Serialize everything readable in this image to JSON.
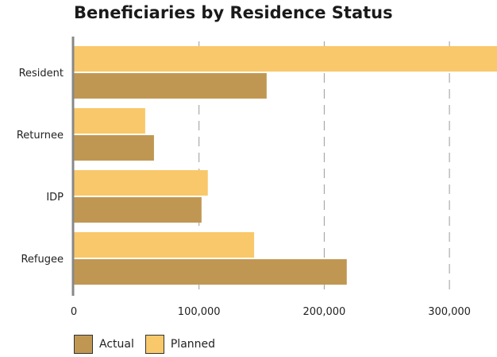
{
  "chart_data": {
    "type": "bar",
    "orientation": "horizontal",
    "title": "Beneficiaries by Residence Status",
    "categories": [
      "Resident",
      "Returnee",
      "IDP",
      "Refugee"
    ],
    "series": [
      {
        "name": "Planned",
        "color": "#f9c86a",
        "values": [
          338000,
          57000,
          107000,
          144000
        ]
      },
      {
        "name": "Actual",
        "color": "#c09752",
        "values": [
          154000,
          64000,
          102000,
          218000
        ]
      }
    ],
    "xticks": [
      0,
      100000,
      200000,
      300000
    ],
    "xtick_labels": [
      "0",
      "100,000",
      "200,000",
      "300,000"
    ],
    "xlim": [
      0,
      338000
    ],
    "grid": "vertical dashed",
    "legend_position": "bottom-left",
    "legend_order": [
      "Actual",
      "Planned"
    ]
  }
}
